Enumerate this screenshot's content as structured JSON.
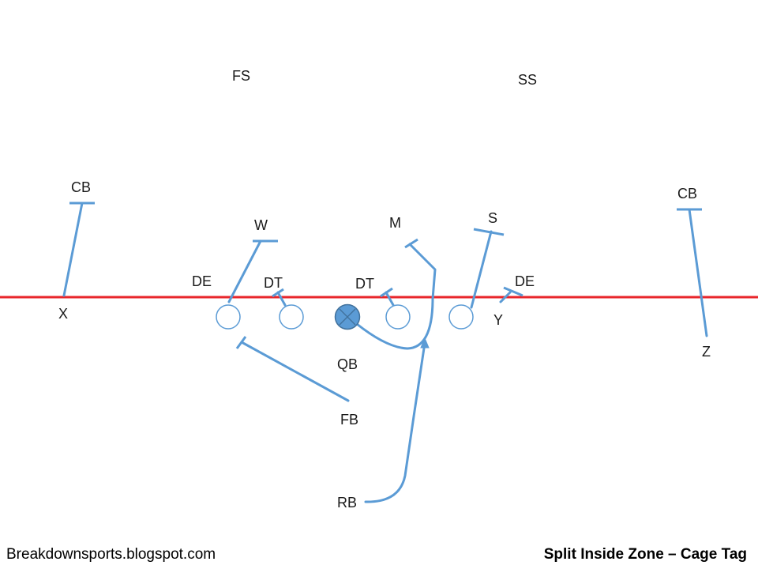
{
  "diagram": {
    "labels": {
      "fs": "FS",
      "ss": "SS",
      "cb_left": "CB",
      "cb_right": "CB",
      "w": "W",
      "m": "M",
      "s": "S",
      "de_left": "DE",
      "dt_left": "DT",
      "dt_right": "DT",
      "de_right": "DE",
      "x": "X",
      "y": "Y",
      "z": "Z",
      "qb": "QB",
      "fb": "FB",
      "rb": "RB"
    },
    "footer": {
      "source": "Breakdownsports.blogspot.com",
      "play_title": "Split Inside Zone – Cage Tag"
    },
    "colors": {
      "line_of_scrimmage": "#e8262b",
      "routes": "#5b9bd5",
      "center_fill": "#5b9bd5"
    }
  }
}
